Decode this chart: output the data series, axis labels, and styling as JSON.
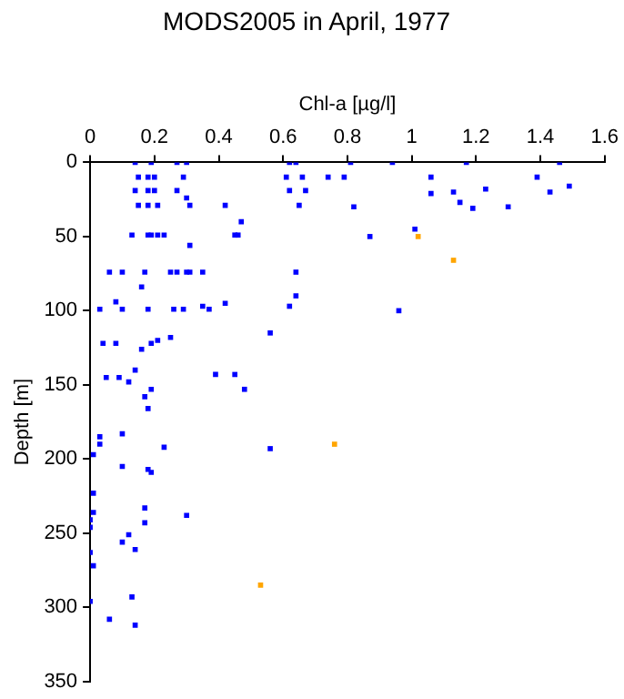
{
  "chart_data": {
    "type": "scatter",
    "title": "MODS2005 in April, 1977",
    "xlabel": "Chl-a [µg/l]",
    "ylabel": "Depth [m]",
    "xlim": [
      0,
      1.6
    ],
    "xticks": [
      0,
      0.2,
      0.4,
      0.6,
      0.8,
      1,
      1.2,
      1.4,
      1.6
    ],
    "ylim": [
      350,
      0
    ],
    "yticks": [
      0,
      50,
      100,
      150,
      200,
      250,
      300,
      350
    ],
    "marker": "square",
    "series": [
      {
        "color": "#0000ff",
        "x": [
          0.14,
          0.19,
          0.27,
          0.3,
          0.62,
          0.64,
          0.81,
          0.94,
          1.17,
          1.46,
          0.15,
          0.18,
          0.2,
          0.29,
          0.61,
          0.66,
          0.74,
          0.79,
          1.06,
          1.39,
          0.14,
          0.18,
          0.2,
          0.27,
          0.62,
          0.67,
          1.49,
          1.23,
          1.13,
          1.43,
          1.06,
          0.3,
          0.15,
          0.18,
          0.21,
          0.31,
          0.42,
          0.65,
          1.15,
          0.82,
          1.3,
          1.19,
          0.47,
          1.01,
          0.13,
          0.18,
          0.19,
          0.21,
          0.23,
          0.45,
          0.46,
          0.87,
          0.31,
          0.06,
          0.1,
          0.17,
          0.25,
          0.27,
          0.3,
          0.31,
          0.35,
          0.64,
          0.16,
          0.64,
          0.08,
          0.35,
          0.62,
          0.42,
          0.03,
          0.1,
          0.18,
          0.26,
          0.29,
          0.37,
          0.96,
          0.56,
          0.25,
          0.21,
          0.04,
          0.08,
          0.19,
          0.16,
          0.14,
          0.39,
          0.45,
          0.05,
          0.09,
          0.12,
          0.48,
          0.19,
          0.17,
          0.18,
          0.1,
          0.03,
          0.03,
          0.23,
          0.56,
          0.01,
          0.1,
          0.18,
          0.19,
          0.01,
          0.17,
          0.01,
          0.3,
          0.0,
          0.17,
          0.0,
          0.12,
          0.1,
          0.14,
          0.0,
          0.01,
          0.13,
          0.0,
          0.06,
          0.14
        ],
        "values": [
          0,
          0,
          0,
          0,
          0,
          0,
          0,
          0,
          0,
          0,
          10,
          10,
          10,
          10,
          10,
          10,
          10,
          10,
          10,
          10,
          19,
          19,
          19,
          19,
          19,
          19,
          16,
          18,
          20,
          20,
          21,
          24,
          29,
          29,
          29,
          29,
          29,
          29,
          27,
          30,
          30,
          31,
          40,
          45,
          49,
          49,
          49,
          49,
          49,
          49,
          49,
          50,
          56,
          74,
          74,
          74,
          74,
          74,
          74,
          74,
          74,
          74,
          84,
          90,
          94,
          97,
          97,
          95,
          99,
          99,
          99,
          99,
          99,
          99,
          100,
          115,
          118,
          120,
          122,
          122,
          122,
          126,
          140,
          143,
          143,
          145,
          145,
          148,
          153,
          153,
          158,
          166,
          183,
          185,
          190,
          192,
          193,
          197,
          205,
          207,
          209,
          223,
          233,
          236,
          238,
          241,
          243,
          246,
          251,
          256,
          261,
          263,
          272,
          293,
          296,
          308,
          312
        ]
      },
      {
        "color": "#ffa500",
        "x": [
          1.02,
          1.13,
          0.76,
          0.53
        ],
        "values": [
          50,
          66,
          190,
          285
        ]
      }
    ]
  }
}
